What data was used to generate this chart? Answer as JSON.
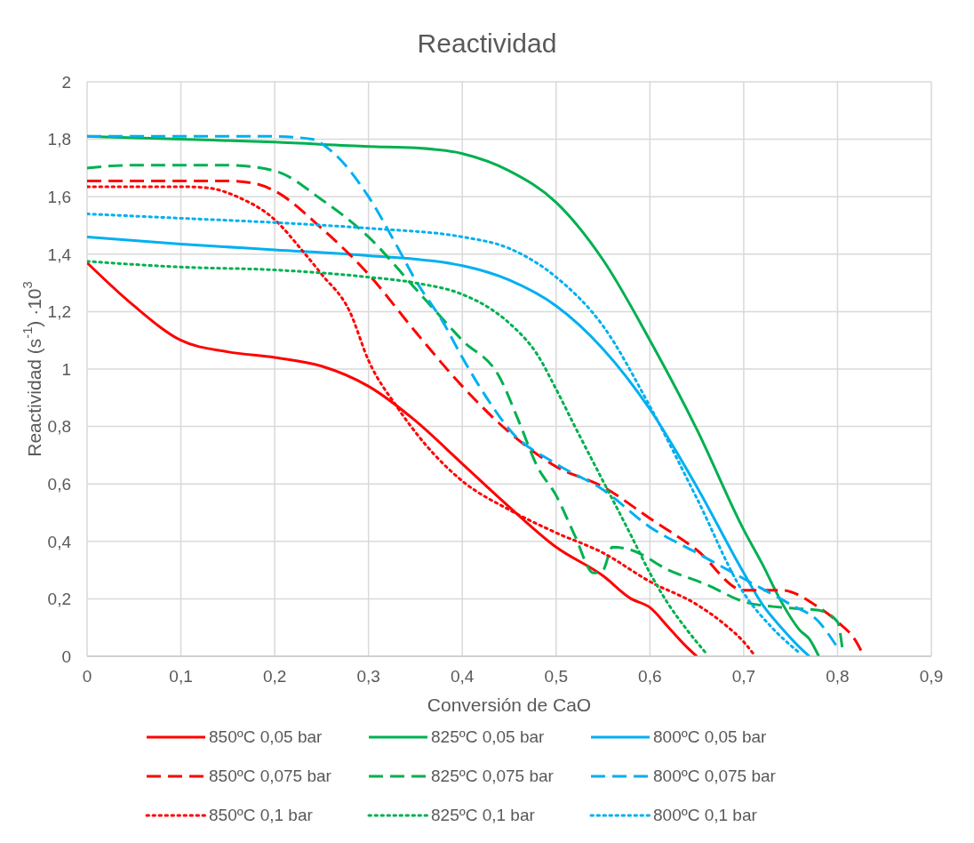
{
  "chart_data": {
    "type": "line",
    "title": "Reactividad",
    "xlabel": "Conversión de CaO",
    "ylabel": "Reactividad (s$^{-1}$) ·10$^{3}$",
    "xlim": [
      0,
      0.9
    ],
    "xticks": [
      0,
      {
        "value": 0.1,
        "label": "0,1"
      },
      {
        "value": 0.2,
        "label": "0,2"
      },
      {
        "value": 0.3,
        "label": "0,3"
      },
      {
        "value": 0.4,
        "label": "0,4"
      },
      {
        "value": 0.5,
        "label": "0,5"
      },
      {
        "value": 0.6,
        "label": "0,6"
      },
      {
        "value": 0.7,
        "label": "0,7"
      },
      {
        "value": 0.8,
        "label": "0,8"
      },
      {
        "value": 0.9,
        "label": "0,9"
      }
    ],
    "ylim": [
      0,
      2
    ],
    "yticks": [
      0,
      {
        "value": 0.2,
        "label": "0,2"
      },
      {
        "value": 0.4,
        "label": "0,4"
      },
      {
        "value": 0.6,
        "label": "0,6"
      },
      {
        "value": 0.8,
        "label": "0,8"
      },
      1,
      {
        "value": 1.2,
        "label": "1,2"
      },
      {
        "value": 1.4,
        "label": "1,4"
      },
      {
        "value": 1.6,
        "label": "1,6"
      },
      {
        "value": 1.8,
        "label": "1,8"
      },
      2
    ],
    "grid": true,
    "legend": "bottom",
    "marker": "none",
    "series": [
      {
        "name": "850ºC 0,05 bar",
        "color": "#ff0000",
        "line_style": "solid",
        "x": [
          0,
          0.05,
          0.1,
          0.15,
          0.2,
          0.25,
          0.3,
          0.35,
          0.4,
          0.45,
          0.5,
          0.55,
          0.58,
          0.6,
          0.62,
          0.64,
          0.65
        ],
        "values": [
          1.37,
          1.22,
          1.1,
          1.06,
          1.04,
          1.01,
          0.94,
          0.82,
          0.67,
          0.52,
          0.38,
          0.28,
          0.2,
          0.17,
          0.1,
          0.03,
          0
        ]
      },
      {
        "name": "825ºC 0,05 bar",
        "color": "#00b050",
        "line_style": "solid",
        "x": [
          0,
          0.1,
          0.2,
          0.3,
          0.35,
          0.4,
          0.45,
          0.5,
          0.55,
          0.6,
          0.65,
          0.7,
          0.72,
          0.74,
          0.76,
          0.77,
          0.78
        ],
        "values": [
          1.81,
          1.8,
          1.79,
          1.775,
          1.77,
          1.75,
          1.69,
          1.58,
          1.38,
          1.1,
          0.79,
          0.44,
          0.32,
          0.19,
          0.09,
          0.06,
          0
        ]
      },
      {
        "name": "800ºC 0,05 bar",
        "color": "#00b0f0",
        "line_style": "solid",
        "x": [
          0,
          0.1,
          0.2,
          0.3,
          0.4,
          0.45,
          0.5,
          0.55,
          0.6,
          0.65,
          0.7,
          0.72,
          0.74,
          0.76,
          0.77
        ],
        "values": [
          1.46,
          1.435,
          1.415,
          1.395,
          1.36,
          1.31,
          1.22,
          1.07,
          0.86,
          0.59,
          0.29,
          0.18,
          0.1,
          0.03,
          0
        ]
      },
      {
        "name": "850ºC 0,075 bar",
        "color": "#ff0000",
        "line_style": "dashed",
        "x": [
          0,
          0.05,
          0.15,
          0.18,
          0.2,
          0.25,
          0.3,
          0.35,
          0.4,
          0.45,
          0.5,
          0.55,
          0.6,
          0.65,
          0.7,
          0.74,
          0.78,
          0.8,
          0.82,
          0.825
        ],
        "values": [
          1.655,
          1.655,
          1.655,
          1.645,
          1.62,
          1.49,
          1.33,
          1.13,
          0.94,
          0.78,
          0.66,
          0.59,
          0.48,
          0.37,
          0.23,
          0.23,
          0.17,
          0.12,
          0.05,
          0.02
        ]
      },
      {
        "name": "825ºC 0,075 bar",
        "color": "#00b050",
        "line_style": "dashed",
        "x": [
          0,
          0.05,
          0.15,
          0.2,
          0.25,
          0.3,
          0.35,
          0.4,
          0.44,
          0.46,
          0.48,
          0.5,
          0.52,
          0.54,
          0.55,
          0.56,
          0.58,
          0.62,
          0.66,
          0.7,
          0.74,
          0.78,
          0.8,
          0.805
        ],
        "values": [
          1.7,
          1.71,
          1.71,
          1.69,
          1.59,
          1.46,
          1.28,
          1.1,
          0.97,
          0.82,
          0.66,
          0.56,
          0.42,
          0.29,
          0.3,
          0.38,
          0.37,
          0.3,
          0.25,
          0.19,
          0.17,
          0.16,
          0.12,
          0.03
        ]
      },
      {
        "name": "800ºC 0,075 bar",
        "color": "#00b0f0",
        "line_style": "dashed",
        "x": [
          0,
          0.1,
          0.2,
          0.24,
          0.26,
          0.3,
          0.33,
          0.35,
          0.38,
          0.4,
          0.43,
          0.45,
          0.5,
          0.55,
          0.6,
          0.65,
          0.7,
          0.75,
          0.78,
          0.8
        ],
        "values": [
          1.81,
          1.81,
          1.81,
          1.8,
          1.76,
          1.6,
          1.43,
          1.31,
          1.16,
          1.04,
          0.88,
          0.79,
          0.67,
          0.58,
          0.45,
          0.36,
          0.27,
          0.18,
          0.12,
          0.03
        ]
      },
      {
        "name": "850ºC 0,1 bar",
        "color": "#ff0000",
        "line_style": "dotted",
        "x": [
          0,
          0.1,
          0.13,
          0.16,
          0.2,
          0.23,
          0.25,
          0.28,
          0.3,
          0.33,
          0.36,
          0.4,
          0.45,
          0.5,
          0.55,
          0.6,
          0.65,
          0.68,
          0.7,
          0.71
        ],
        "values": [
          1.635,
          1.635,
          1.63,
          1.6,
          1.52,
          1.41,
          1.33,
          1.2,
          1.03,
          0.87,
          0.74,
          0.61,
          0.51,
          0.43,
          0.36,
          0.26,
          0.18,
          0.11,
          0.05,
          0.01
        ]
      },
      {
        "name": "825ºC 0,1 bar",
        "color": "#00b050",
        "line_style": "dotted",
        "x": [
          0,
          0.1,
          0.2,
          0.3,
          0.35,
          0.4,
          0.43,
          0.45,
          0.48,
          0.5,
          0.52,
          0.55,
          0.58,
          0.6,
          0.62,
          0.64,
          0.66
        ],
        "values": [
          1.375,
          1.355,
          1.345,
          1.32,
          1.3,
          1.26,
          1.21,
          1.16,
          1.05,
          0.93,
          0.8,
          0.61,
          0.42,
          0.29,
          0.18,
          0.09,
          0.01
        ]
      },
      {
        "name": "800ºC 0,1 bar",
        "color": "#00b0f0",
        "line_style": "dotted",
        "x": [
          0,
          0.1,
          0.2,
          0.3,
          0.4,
          0.45,
          0.5,
          0.55,
          0.6,
          0.65,
          0.7,
          0.73,
          0.76
        ],
        "values": [
          1.54,
          1.525,
          1.51,
          1.49,
          1.46,
          1.42,
          1.32,
          1.15,
          0.87,
          0.55,
          0.22,
          0.1,
          0.01
        ]
      }
    ]
  }
}
